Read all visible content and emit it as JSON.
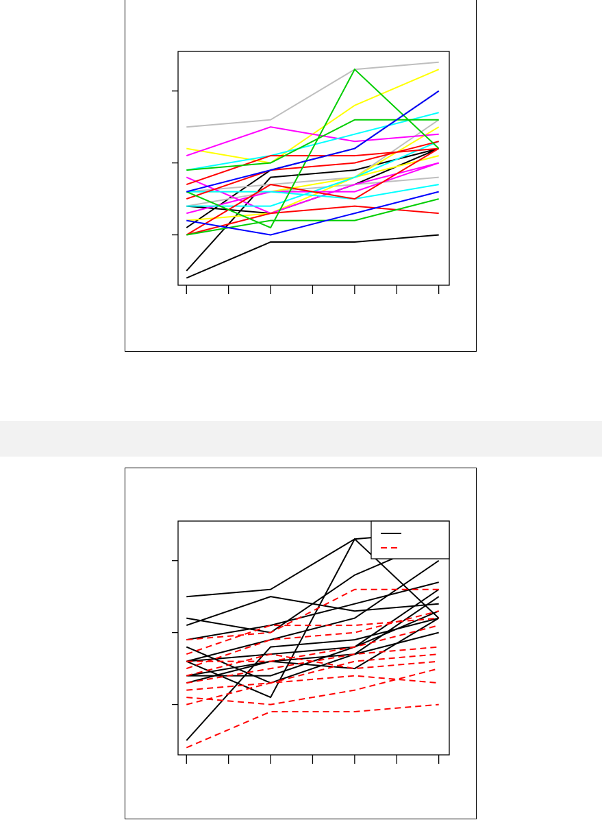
{
  "charts": [
    {
      "type": "line",
      "x": [
        1,
        2,
        3,
        4,
        5,
        6,
        7
      ],
      "xlim": [
        0.8,
        7.25
      ],
      "ylim": [
        0.3,
        3.55
      ],
      "yticks": [
        1,
        2,
        3
      ],
      "series": [
        {
          "color": "#000000",
          "values": [
            0.4,
            null,
            0.9,
            null,
            0.9,
            null,
            1.0
          ]
        },
        {
          "color": "#000000",
          "values": [
            0.5,
            null,
            1.8,
            null,
            1.9,
            null,
            2.2
          ]
        },
        {
          "color": "#000000",
          "values": [
            1.1,
            null,
            1.9,
            null,
            2.2,
            null,
            3.0
          ]
        },
        {
          "color": "#000000",
          "values": [
            1.4,
            null,
            1.3,
            null,
            1.7,
            null,
            2.2
          ]
        },
        {
          "color": "#bebebe",
          "values": [
            2.5,
            null,
            2.6,
            null,
            3.3,
            null,
            3.4
          ]
        },
        {
          "color": "#bebebe",
          "values": [
            1.6,
            null,
            1.7,
            null,
            1.8,
            null,
            2.6
          ]
        },
        {
          "color": "#bebebe",
          "values": [
            1.4,
            null,
            1.6,
            null,
            1.7,
            null,
            1.8
          ]
        },
        {
          "color": "#ffff00",
          "values": [
            2.2,
            null,
            2.0,
            null,
            2.8,
            null,
            3.3
          ]
        },
        {
          "color": "#ffff00",
          "values": [
            1.6,
            null,
            1.6,
            null,
            1.8,
            null,
            2.5
          ]
        },
        {
          "color": "#ffff00",
          "values": [
            1.2,
            null,
            1.3,
            null,
            1.8,
            null,
            2.1
          ]
        },
        {
          "color": "#ff00ff",
          "values": [
            2.1,
            null,
            2.5,
            null,
            2.3,
            null,
            2.4
          ]
        },
        {
          "color": "#ff00ff",
          "values": [
            1.8,
            null,
            1.3,
            null,
            1.7,
            null,
            2.0
          ]
        },
        {
          "color": "#ff00ff",
          "values": [
            1.3,
            null,
            1.6,
            null,
            1.6,
            null,
            2.0
          ]
        },
        {
          "color": "#00ffff",
          "values": [
            1.9,
            null,
            2.1,
            null,
            2.4,
            null,
            2.7
          ]
        },
        {
          "color": "#00ffff",
          "values": [
            1.4,
            null,
            1.4,
            null,
            1.8,
            null,
            2.3
          ]
        },
        {
          "color": "#00ffff",
          "values": [
            1.6,
            null,
            1.6,
            null,
            1.5,
            null,
            1.7
          ]
        },
        {
          "color": "#ff0000",
          "values": [
            1.7,
            null,
            2.1,
            null,
            2.1,
            null,
            2.2
          ]
        },
        {
          "color": "#ff0000",
          "values": [
            1.5,
            null,
            1.9,
            null,
            2.0,
            null,
            2.3
          ]
        },
        {
          "color": "#ff0000",
          "values": [
            1.0,
            null,
            1.7,
            null,
            1.5,
            null,
            2.2
          ]
        },
        {
          "color": "#ff0000",
          "values": [
            1.0,
            null,
            1.3,
            null,
            1.4,
            null,
            1.3
          ]
        },
        {
          "color": "#00cd00",
          "values": [
            1.9,
            null,
            2.0,
            null,
            2.6,
            null,
            2.6
          ]
        },
        {
          "color": "#00cd00",
          "values": [
            1.6,
            null,
            1.1,
            null,
            3.3,
            null,
            2.2
          ]
        },
        {
          "color": "#00cd00",
          "values": [
            1.0,
            null,
            1.2,
            null,
            1.2,
            null,
            1.5
          ]
        },
        {
          "color": "#0000ff",
          "values": [
            1.6,
            null,
            1.9,
            null,
            2.2,
            null,
            3.0
          ]
        },
        {
          "color": "#0000ff",
          "values": [
            1.2,
            null,
            1.0,
            null,
            1.3,
            null,
            1.6
          ]
        }
      ]
    },
    {
      "type": "line",
      "x": [
        1,
        2,
        3,
        4,
        5,
        6,
        7
      ],
      "xlim": [
        0.8,
        7.25
      ],
      "ylim": [
        0.3,
        3.55
      ],
      "yticks": [
        1,
        2,
        3
      ],
      "legend": {
        "position": "top-right"
      },
      "series": [
        {
          "color": "#000000",
          "dash": false,
          "values": [
            2.5,
            null,
            2.6,
            null,
            3.3,
            null,
            3.4
          ]
        },
        {
          "color": "#000000",
          "dash": false,
          "values": [
            2.2,
            null,
            2.0,
            null,
            2.8,
            null,
            3.3
          ]
        },
        {
          "color": "#000000",
          "dash": false,
          "values": [
            2.1,
            null,
            2.5,
            null,
            2.3,
            null,
            2.4
          ]
        },
        {
          "color": "#000000",
          "dash": false,
          "values": [
            1.9,
            null,
            2.1,
            null,
            2.4,
            null,
            2.7
          ]
        },
        {
          "color": "#000000",
          "dash": false,
          "values": [
            1.6,
            null,
            1.1,
            null,
            3.3,
            null,
            2.2
          ]
        },
        {
          "color": "#000000",
          "dash": false,
          "values": [
            1.6,
            null,
            1.9,
            null,
            2.2,
            null,
            3.0
          ]
        },
        {
          "color": "#000000",
          "dash": false,
          "values": [
            1.8,
            null,
            1.3,
            null,
            1.7,
            null,
            2.0
          ]
        },
        {
          "color": "#000000",
          "dash": false,
          "values": [
            0.5,
            null,
            1.8,
            null,
            1.9,
            null,
            2.2
          ]
        },
        {
          "color": "#000000",
          "dash": false,
          "values": [
            1.6,
            null,
            1.7,
            null,
            1.8,
            null,
            2.6
          ]
        },
        {
          "color": "#000000",
          "dash": false,
          "values": [
            1.4,
            null,
            1.4,
            null,
            1.8,
            null,
            2.3
          ]
        },
        {
          "color": "#000000",
          "dash": false,
          "values": [
            1.3,
            null,
            1.6,
            null,
            1.5,
            null,
            2.2
          ]
        },
        {
          "color": "#000000",
          "dash": false,
          "values": [
            1.4,
            null,
            1.6,
            null,
            1.7,
            null,
            2.5
          ]
        },
        {
          "color": "#ff0000",
          "dash": true,
          "values": [
            0.4,
            null,
            0.9,
            null,
            0.9,
            null,
            1.0
          ]
        },
        {
          "color": "#ff0000",
          "dash": true,
          "values": [
            1.9,
            null,
            2.0,
            null,
            2.6,
            null,
            2.6
          ]
        },
        {
          "color": "#ff0000",
          "dash": true,
          "values": [
            1.7,
            null,
            2.1,
            null,
            2.1,
            null,
            2.2
          ]
        },
        {
          "color": "#ff0000",
          "dash": true,
          "values": [
            1.5,
            null,
            1.9,
            null,
            2.0,
            null,
            2.3
          ]
        },
        {
          "color": "#ff0000",
          "dash": true,
          "values": [
            1.6,
            null,
            1.6,
            null,
            1.8,
            null,
            2.1
          ]
        },
        {
          "color": "#ff0000",
          "dash": true,
          "values": [
            1.3,
            null,
            1.5,
            null,
            1.7,
            null,
            1.8
          ]
        },
        {
          "color": "#ff0000",
          "dash": true,
          "values": [
            1.2,
            null,
            1.3,
            null,
            1.6,
            null,
            1.7
          ]
        },
        {
          "color": "#ff0000",
          "dash": true,
          "values": [
            1.0,
            null,
            1.3,
            null,
            1.4,
            null,
            1.3
          ]
        },
        {
          "color": "#ff0000",
          "dash": true,
          "values": [
            1.1,
            null,
            1.0,
            null,
            1.2,
            null,
            1.5
          ]
        },
        {
          "color": "#ff0000",
          "dash": true,
          "values": [
            1.4,
            null,
            1.7,
            null,
            1.5,
            null,
            1.6
          ]
        }
      ]
    }
  ]
}
